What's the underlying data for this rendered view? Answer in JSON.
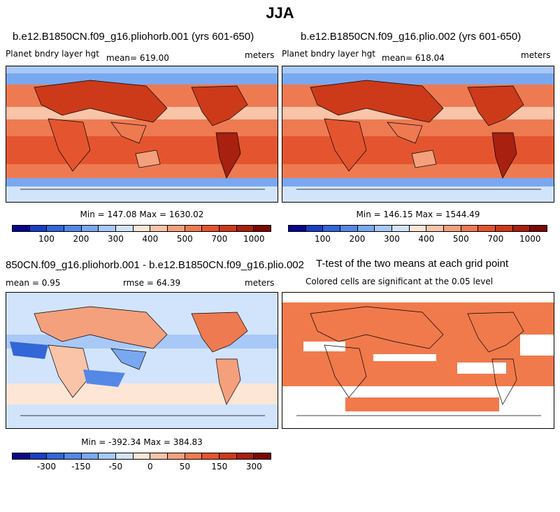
{
  "title": "JJA",
  "panels": [
    {
      "title": "b.e12.B1850CN.f09_g16.pliohorb.001 (yrs 601-650)",
      "variable": "Planet bndry layer hgt",
      "mean": "mean= 619.00",
      "units": "meters",
      "minmax": "Min = 147.08 Max = 1630.02",
      "colorbar": {
        "colors": [
          "#08088a",
          "#1a3fc4",
          "#3366d6",
          "#5588e6",
          "#7aa8f0",
          "#a8c8f8",
          "#d2e4fb",
          "#fde6d6",
          "#f9c4a8",
          "#f4a07c",
          "#ee7a52",
          "#e4552f",
          "#cc3a1a",
          "#a82010",
          "#7a0a06"
        ],
        "ticks": [
          "100",
          "200",
          "300",
          "400",
          "500",
          "700",
          "1000"
        ]
      }
    },
    {
      "title": "b.e12.B1850CN.f09_g16.plio.002 (yrs 601-650)",
      "variable": "Planet bndry layer hgt",
      "mean": "mean= 618.04",
      "units": "meters",
      "minmax": "Min = 146.15 Max = 1544.49",
      "colorbar": {
        "colors": [
          "#08088a",
          "#1a3fc4",
          "#3366d6",
          "#5588e6",
          "#7aa8f0",
          "#a8c8f8",
          "#d2e4fb",
          "#fde6d6",
          "#f9c4a8",
          "#f4a07c",
          "#ee7a52",
          "#e4552f",
          "#cc3a1a",
          "#a82010",
          "#7a0a06"
        ],
        "ticks": [
          "100",
          "200",
          "300",
          "400",
          "500",
          "700",
          "1000"
        ]
      }
    },
    {
      "title": "850CN.f09_g16.pliohorb.001 - b.e12.B1850CN.f09_g16.plio.002",
      "mean": "mean =    0.95",
      "rmse": "rmse =  64.39",
      "units": "meters",
      "minmax": "Min = -392.34 Max = 384.83",
      "colorbar": {
        "colors": [
          "#08088a",
          "#1a3fc4",
          "#3366d6",
          "#5588e6",
          "#7aa8f0",
          "#a8c8f8",
          "#d2e4fb",
          "#fde6d6",
          "#f9c4a8",
          "#f4a07c",
          "#ee7a52",
          "#e4552f",
          "#cc3a1a",
          "#a82010",
          "#7a0a06"
        ],
        "ticks": [
          "-300",
          "-150",
          "-50",
          "0",
          "50",
          "150",
          "300"
        ]
      }
    },
    {
      "title": "T-test of the two means at each grid point",
      "subtitle": "Colored cells are significant at the 0.05 level",
      "fill_color": "#f07a4c"
    }
  ]
}
